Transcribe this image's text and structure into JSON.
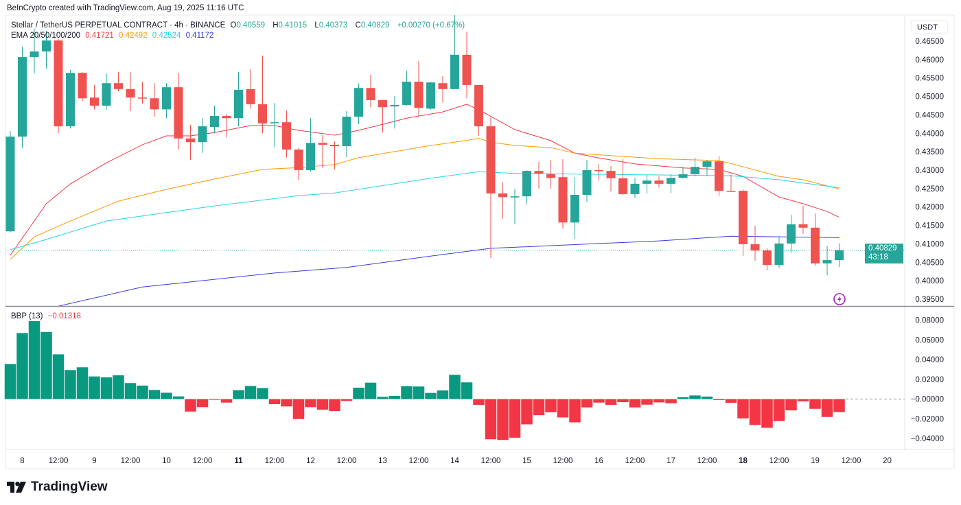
{
  "header": {
    "credit": "BeInCrypto created with TradingView.com, Aug 19, 2025 11:16 UTC"
  },
  "legend": {
    "symbol": "Stellar / TetherUS PERPETUAL CONTRACT · 4h · BINANCE",
    "o_label": "O",
    "o": "0.40559",
    "h_label": "H",
    "h": "0.41015",
    "l_label": "L",
    "l": "0.40373",
    "c_label": "C",
    "c": "0.40829",
    "change": "+0.00270 (+0.67%)"
  },
  "ema_legend": {
    "label": "EMA 20/50/100/200",
    "v20": "0.41721",
    "v50": "0.42492",
    "v100": "0.42524",
    "v200": "0.41172"
  },
  "bbp_legend": {
    "label": "BBP (13)",
    "value": "−0.01318"
  },
  "price_axis": {
    "currency": "USDT",
    "ticks": [
      "0.46500",
      "0.46000",
      "0.45500",
      "0.45000",
      "0.44500",
      "0.44000",
      "0.43500",
      "0.43000",
      "0.42500",
      "0.42000",
      "0.41500",
      "0.41000",
      "0.40500",
      "0.40000",
      "0.39500"
    ]
  },
  "current_price": {
    "value": "0.40829",
    "countdown": "43:18"
  },
  "bbp_axis": {
    "ticks": [
      "0.08000",
      "0.06000",
      "0.04000",
      "0.02000",
      "−0.00000",
      "−0.02000",
      "−0.04000"
    ]
  },
  "time_axis": [
    {
      "label": "8",
      "day": 8,
      "hour": 0,
      "bold": false
    },
    {
      "label": "12:00",
      "day": 8,
      "hour": 12,
      "bold": false
    },
    {
      "label": "9",
      "day": 9,
      "hour": 0,
      "bold": false
    },
    {
      "label": "12:00",
      "day": 9,
      "hour": 12,
      "bold": false
    },
    {
      "label": "10",
      "day": 10,
      "hour": 0,
      "bold": false
    },
    {
      "label": "12:00",
      "day": 10,
      "hour": 12,
      "bold": false
    },
    {
      "label": "11",
      "day": 11,
      "hour": 0,
      "bold": true
    },
    {
      "label": "12:00",
      "day": 11,
      "hour": 12,
      "bold": false
    },
    {
      "label": "12",
      "day": 12,
      "hour": 0,
      "bold": false
    },
    {
      "label": "12:00",
      "day": 12,
      "hour": 12,
      "bold": false
    },
    {
      "label": "13",
      "day": 13,
      "hour": 0,
      "bold": false
    },
    {
      "label": "12:00",
      "day": 13,
      "hour": 12,
      "bold": false
    },
    {
      "label": "14",
      "day": 14,
      "hour": 0,
      "bold": false
    },
    {
      "label": "12:00",
      "day": 14,
      "hour": 12,
      "bold": false
    },
    {
      "label": "15",
      "day": 15,
      "hour": 0,
      "bold": false
    },
    {
      "label": "12:00",
      "day": 15,
      "hour": 12,
      "bold": false
    },
    {
      "label": "16",
      "day": 16,
      "hour": 0,
      "bold": false
    },
    {
      "label": "12:00",
      "day": 16,
      "hour": 12,
      "bold": false
    },
    {
      "label": "17",
      "day": 17,
      "hour": 0,
      "bold": false
    },
    {
      "label": "12:00",
      "day": 17,
      "hour": 12,
      "bold": false
    },
    {
      "label": "18",
      "day": 18,
      "hour": 0,
      "bold": true
    },
    {
      "label": "12:00",
      "day": 18,
      "hour": 12,
      "bold": false
    },
    {
      "label": "19",
      "day": 19,
      "hour": 0,
      "bold": false
    },
    {
      "label": "12:00",
      "day": 19,
      "hour": 12,
      "bold": false
    },
    {
      "label": "20",
      "day": 20,
      "hour": 0,
      "bold": false
    }
  ],
  "logo": {
    "text": "TradingView"
  },
  "icons": {
    "alert": "lightning-icon",
    "logo": "tradingview-logo-icon"
  },
  "colors": {
    "up": "#26a69a",
    "down": "#ef5350",
    "bbp_up": "#089981",
    "bbp_down": "#f23645",
    "ema20": "#f23645",
    "ema50": "#ff9800",
    "ema100": "#26d4e8",
    "ema200": "#3a3ae0",
    "alert": "#9c27b0"
  },
  "chart_data": [
    {
      "type": "candlestick",
      "start": {
        "day": 7,
        "hour": 20
      },
      "interval_hours": 4,
      "ylim": [
        0.3935,
        0.4725
      ],
      "candles": [
        [
          0.4134,
          0.4406,
          0.4131,
          0.4391
        ],
        [
          0.4391,
          0.4635,
          0.436,
          0.4607
        ],
        [
          0.4607,
          0.4684,
          0.4562,
          0.4622
        ],
        [
          0.4622,
          0.4678,
          0.4576,
          0.4652
        ],
        [
          0.4652,
          0.4657,
          0.44,
          0.4419
        ],
        [
          0.4419,
          0.4572,
          0.4413,
          0.4564
        ],
        [
          0.4564,
          0.4566,
          0.4488,
          0.4495
        ],
        [
          0.4497,
          0.4531,
          0.4465,
          0.4475
        ],
        [
          0.4475,
          0.4562,
          0.4464,
          0.4536
        ],
        [
          0.4536,
          0.4566,
          0.4514,
          0.452
        ],
        [
          0.452,
          0.4566,
          0.446,
          0.4497
        ],
        [
          0.4497,
          0.454,
          0.4481,
          0.4495
        ],
        [
          0.4495,
          0.4536,
          0.4445,
          0.4465
        ],
        [
          0.4465,
          0.4536,
          0.4441,
          0.4525
        ],
        [
          0.4525,
          0.4564,
          0.4356,
          0.4386
        ],
        [
          0.4386,
          0.4423,
          0.4328,
          0.4376
        ],
        [
          0.4376,
          0.4441,
          0.4347,
          0.4419
        ],
        [
          0.4417,
          0.4475,
          0.44,
          0.4447
        ],
        [
          0.4447,
          0.4452,
          0.4389,
          0.4441
        ],
        [
          0.4441,
          0.4566,
          0.4419,
          0.4518
        ],
        [
          0.452,
          0.4574,
          0.4467,
          0.4479
        ],
        [
          0.4479,
          0.4611,
          0.44,
          0.4427
        ],
        [
          0.4428,
          0.4482,
          0.4363,
          0.443
        ],
        [
          0.443,
          0.4462,
          0.4334,
          0.4356
        ],
        [
          0.4356,
          0.436,
          0.4274,
          0.43
        ],
        [
          0.43,
          0.4441,
          0.4296,
          0.4374
        ],
        [
          0.4374,
          0.4395,
          0.4306,
          0.4369
        ],
        [
          0.4369,
          0.4378,
          0.4302,
          0.4365
        ],
        [
          0.4365,
          0.446,
          0.4335,
          0.4445
        ],
        [
          0.4445,
          0.4535,
          0.4425,
          0.4523
        ],
        [
          0.4523,
          0.4559,
          0.4471,
          0.449
        ],
        [
          0.449,
          0.449,
          0.4402,
          0.4471
        ],
        [
          0.4473,
          0.4501,
          0.4413,
          0.4477
        ],
        [
          0.4477,
          0.457,
          0.4475,
          0.454
        ],
        [
          0.454,
          0.4596,
          0.4447,
          0.4469
        ],
        [
          0.4467,
          0.454,
          0.4464,
          0.4538
        ],
        [
          0.4536,
          0.4555,
          0.4484,
          0.452
        ],
        [
          0.452,
          0.4721,
          0.452,
          0.4613
        ],
        [
          0.4613,
          0.4676,
          0.4495,
          0.4531
        ],
        [
          0.4531,
          0.4531,
          0.4393,
          0.4419
        ],
        [
          0.4419,
          0.4443,
          0.4062,
          0.4237
        ],
        [
          0.4237,
          0.4268,
          0.4168,
          0.4227
        ],
        [
          0.4226,
          0.4248,
          0.4153,
          0.4229
        ],
        [
          0.4229,
          0.43,
          0.4207,
          0.4298
        ],
        [
          0.4298,
          0.4322,
          0.425,
          0.4291
        ],
        [
          0.4289,
          0.4328,
          0.425,
          0.4279
        ],
        [
          0.4281,
          0.433,
          0.4142,
          0.4158
        ],
        [
          0.4158,
          0.4281,
          0.4114,
          0.4233
        ],
        [
          0.4233,
          0.4328,
          0.4214,
          0.43
        ],
        [
          0.43,
          0.4317,
          0.4272,
          0.4298
        ],
        [
          0.4298,
          0.4311,
          0.4242,
          0.4278
        ],
        [
          0.4278,
          0.433,
          0.4233,
          0.4235
        ],
        [
          0.4235,
          0.4279,
          0.4224,
          0.4263
        ],
        [
          0.4263,
          0.4287,
          0.4237,
          0.4272
        ],
        [
          0.4272,
          0.4283,
          0.4253,
          0.4263
        ],
        [
          0.4263,
          0.4289,
          0.4238,
          0.4279
        ],
        [
          0.4279,
          0.4309,
          0.4279,
          0.4289
        ],
        [
          0.4289,
          0.4334,
          0.4283,
          0.4309
        ],
        [
          0.4309,
          0.4328,
          0.4285,
          0.4324
        ],
        [
          0.4324,
          0.4339,
          0.4229,
          0.4244
        ],
        [
          0.4244,
          0.4287,
          0.4242,
          0.4242
        ],
        [
          0.4244,
          0.4248,
          0.4067,
          0.4099
        ],
        [
          0.4099,
          0.4149,
          0.4054,
          0.4082
        ],
        [
          0.4082,
          0.4088,
          0.4028,
          0.4043
        ],
        [
          0.4043,
          0.4121,
          0.4035,
          0.4101
        ],
        [
          0.4101,
          0.4179,
          0.4076,
          0.4153
        ],
        [
          0.4153,
          0.4203,
          0.4127,
          0.4144
        ],
        [
          0.4144,
          0.4183,
          0.4041,
          0.4047
        ],
        [
          0.4047,
          0.4095,
          0.4015,
          0.4056
        ],
        [
          0.40559,
          0.41015,
          0.40373,
          0.40829
        ]
      ],
      "ema": [
        {
          "name": "EMA 20",
          "color_key": "ema20",
          "points": [
            [
              "08-07 20",
              0.4069
            ],
            [
              "08-08 08",
              0.4209
            ],
            [
              "08-08 16",
              0.4263
            ],
            [
              "08-09 04",
              0.432
            ],
            [
              "08-09 16",
              0.4369
            ],
            [
              "08-10 00",
              0.4393
            ],
            [
              "08-10 08",
              0.4393
            ],
            [
              "08-10 16",
              0.4402
            ],
            [
              "08-11 04",
              0.4421
            ],
            [
              "08-11 12",
              0.4421
            ],
            [
              "08-11 20",
              0.4408
            ],
            [
              "08-12 08",
              0.4395
            ],
            [
              "08-12 16",
              0.4408
            ],
            [
              "08-13 08",
              0.4441
            ],
            [
              "08-13 20",
              0.4458
            ],
            [
              "08-14 04",
              0.4479
            ],
            [
              "08-14 08",
              0.4464
            ],
            [
              "08-14 20",
              0.441
            ],
            [
              "08-15 08",
              0.438
            ],
            [
              "08-15 16",
              0.4346
            ],
            [
              "08-16 00",
              0.4333
            ],
            [
              "08-16 12",
              0.4317
            ],
            [
              "08-17 04",
              0.4306
            ],
            [
              "08-17 16",
              0.4302
            ],
            [
              "08-18 00",
              0.4283
            ],
            [
              "08-18 12",
              0.4227
            ],
            [
              "08-18 20",
              0.4209
            ],
            [
              "08-19 04",
              0.4188
            ],
            [
              "08-19 08",
              0.41721
            ]
          ]
        },
        {
          "name": "EMA 50",
          "color_key": "ema50",
          "points": [
            [
              "08-07 20",
              0.4058
            ],
            [
              "08-08 04",
              0.4119
            ],
            [
              "08-08 16",
              0.4162
            ],
            [
              "08-09 08",
              0.4216
            ],
            [
              "08-10 00",
              0.4248
            ],
            [
              "08-10 16",
              0.4276
            ],
            [
              "08-11 08",
              0.4302
            ],
            [
              "08-11 20",
              0.4307
            ],
            [
              "08-12 08",
              0.4315
            ],
            [
              "08-12 16",
              0.4334
            ],
            [
              "08-13 16",
              0.4367
            ],
            [
              "08-14 00",
              0.4376
            ],
            [
              "08-14 08",
              0.4386
            ],
            [
              "08-14 12",
              0.4376
            ],
            [
              "08-14 20",
              0.4367
            ],
            [
              "08-15 08",
              0.4361
            ],
            [
              "08-15 16",
              0.4346
            ],
            [
              "08-16 20",
              0.4331
            ],
            [
              "08-17 16",
              0.4326
            ],
            [
              "08-17 20",
              0.4318
            ],
            [
              "08-18 12",
              0.4283
            ],
            [
              "08-18 20",
              0.4274
            ],
            [
              "08-19 08",
              0.42492
            ]
          ]
        },
        {
          "name": "EMA 100",
          "color_key": "ema100",
          "points": [
            [
              "08-07 20",
              0.4084
            ],
            [
              "08-08 08",
              0.4112
            ],
            [
              "08-09 04",
              0.4162
            ],
            [
              "08-10 00",
              0.4185
            ],
            [
              "08-10 16",
              0.4203
            ],
            [
              "08-11 20",
              0.4231
            ],
            [
              "08-12 08",
              0.4238
            ],
            [
              "08-13 16",
              0.4278
            ],
            [
              "08-14 08",
              0.4296
            ],
            [
              "08-14 20",
              0.4291
            ],
            [
              "08-16 20",
              0.4287
            ],
            [
              "08-17 20",
              0.4285
            ],
            [
              "08-18 12",
              0.4274
            ],
            [
              "08-19 08",
              0.42524
            ]
          ]
        },
        {
          "name": "EMA 200",
          "color_key": "ema200",
          "points": [
            [
              "08-08 12",
              0.3931
            ],
            [
              "08-09 16",
              0.3983
            ],
            [
              "08-11 12",
              0.4021
            ],
            [
              "08-12 12",
              0.4036
            ],
            [
              "08-13 16",
              0.4067
            ],
            [
              "08-14 12",
              0.4088
            ],
            [
              "08-16 20",
              0.4108
            ],
            [
              "08-17 20",
              0.4121
            ],
            [
              "08-19 08",
              0.41172
            ]
          ]
        }
      ],
      "last_price": 0.40829
    },
    {
      "type": "bar",
      "name": "BBP (13)",
      "ylim": [
        -0.045,
        0.085
      ],
      "values": [
        0.0356,
        0.067,
        0.0791,
        0.0681,
        0.0454,
        0.0295,
        0.0323,
        0.023,
        0.0221,
        0.0242,
        0.0163,
        0.0137,
        0.0093,
        0.0065,
        0.0028,
        -0.0126,
        -0.0081,
        -0.0002,
        -0.0035,
        0.0091,
        0.0133,
        0.0112,
        -0.0051,
        -0.0074,
        -0.0202,
        -0.0081,
        -0.0107,
        -0.0121,
        -0.0019,
        0.0116,
        0.0167,
        0.0023,
        0.0033,
        0.013,
        0.0128,
        0.0063,
        0.0088,
        0.0247,
        0.017,
        -0.0058,
        -0.0407,
        -0.0414,
        -0.0391,
        -0.0256,
        -0.0163,
        -0.0133,
        -0.0186,
        -0.0235,
        -0.0084,
        -0.0035,
        -0.0058,
        -0.003,
        -0.0084,
        -0.0056,
        -0.0033,
        -0.0042,
        0.0019,
        0.0037,
        0.0026,
        -0.0009,
        -0.0037,
        -0.0195,
        -0.0263,
        -0.0291,
        -0.0223,
        -0.0114,
        -0.0023,
        -0.0098,
        -0.0181,
        -0.01318
      ]
    }
  ]
}
